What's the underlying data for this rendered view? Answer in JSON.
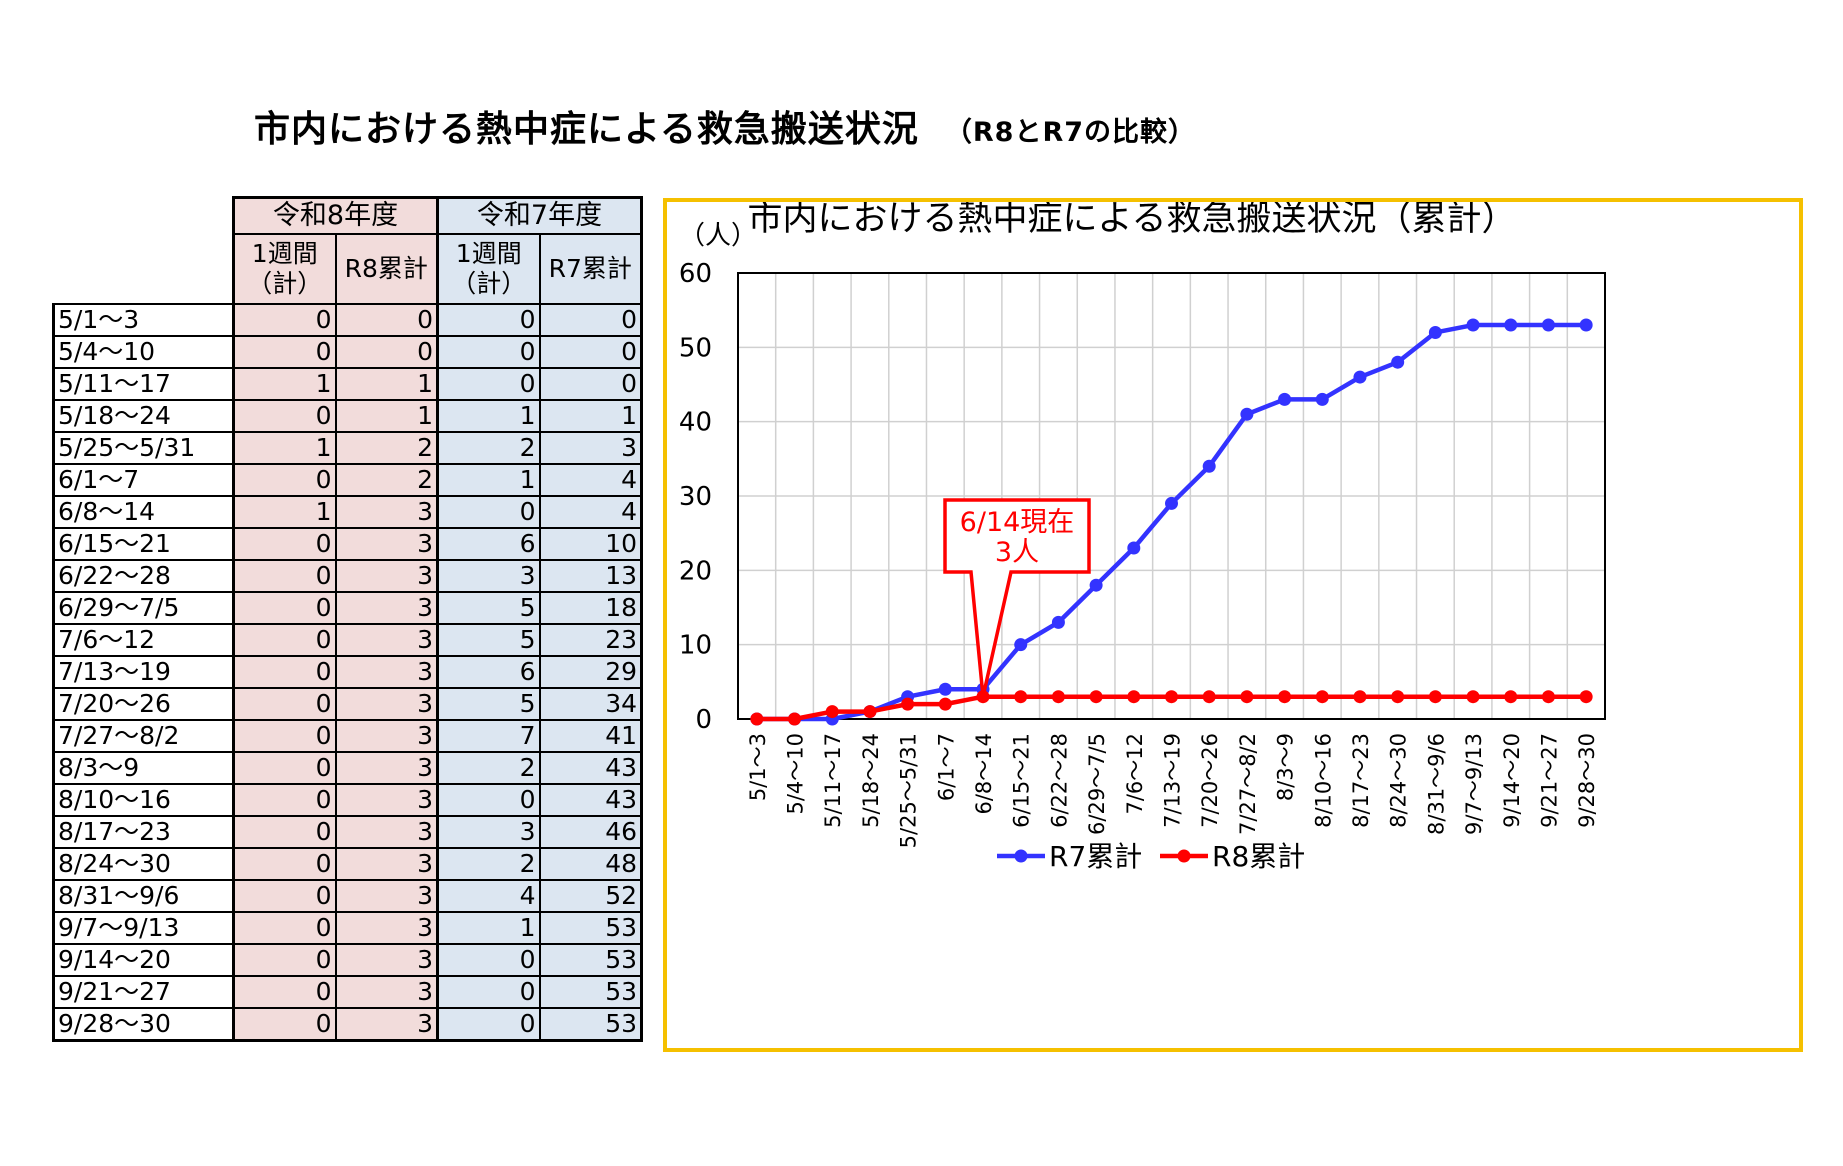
{
  "page": {
    "title": "市内における熱中症による救急搬送状況",
    "subtitle": "（R8とR7の比較）"
  },
  "table": {
    "group_headers": [
      "令和8年度",
      "令和7年度"
    ],
    "sub_headers": [
      "1週間（計）",
      "R8累計",
      "1週間（計）",
      "R7累計"
    ],
    "rows": [
      {
        "period": "5/1～3",
        "r8_week": 0,
        "r8_cum": 0,
        "r7_week": 0,
        "r7_cum": 0
      },
      {
        "period": "5/4～10",
        "r8_week": 0,
        "r8_cum": 0,
        "r7_week": 0,
        "r7_cum": 0
      },
      {
        "period": "5/11～17",
        "r8_week": 1,
        "r8_cum": 1,
        "r7_week": 0,
        "r7_cum": 0
      },
      {
        "period": "5/18～24",
        "r8_week": 0,
        "r8_cum": 1,
        "r7_week": 1,
        "r7_cum": 1
      },
      {
        "period": "5/25～5/31",
        "r8_week": 1,
        "r8_cum": 2,
        "r7_week": 2,
        "r7_cum": 3
      },
      {
        "period": "6/1～7",
        "r8_week": 0,
        "r8_cum": 2,
        "r7_week": 1,
        "r7_cum": 4
      },
      {
        "period": "6/8～14",
        "r8_week": 1,
        "r8_cum": 3,
        "r7_week": 0,
        "r7_cum": 4
      },
      {
        "period": "6/15～21",
        "r8_week": 0,
        "r8_cum": 3,
        "r7_week": 6,
        "r7_cum": 10
      },
      {
        "period": "6/22～28",
        "r8_week": 0,
        "r8_cum": 3,
        "r7_week": 3,
        "r7_cum": 13
      },
      {
        "period": "6/29～7/5",
        "r8_week": 0,
        "r8_cum": 3,
        "r7_week": 5,
        "r7_cum": 18
      },
      {
        "period": "7/6～12",
        "r8_week": 0,
        "r8_cum": 3,
        "r7_week": 5,
        "r7_cum": 23
      },
      {
        "period": "7/13～19",
        "r8_week": 0,
        "r8_cum": 3,
        "r7_week": 6,
        "r7_cum": 29
      },
      {
        "period": "7/20～26",
        "r8_week": 0,
        "r8_cum": 3,
        "r7_week": 5,
        "r7_cum": 34
      },
      {
        "period": "7/27～8/2",
        "r8_week": 0,
        "r8_cum": 3,
        "r7_week": 7,
        "r7_cum": 41
      },
      {
        "period": "8/3～9",
        "r8_week": 0,
        "r8_cum": 3,
        "r7_week": 2,
        "r7_cum": 43
      },
      {
        "period": "8/10～16",
        "r8_week": 0,
        "r8_cum": 3,
        "r7_week": 0,
        "r7_cum": 43
      },
      {
        "period": "8/17～23",
        "r8_week": 0,
        "r8_cum": 3,
        "r7_week": 3,
        "r7_cum": 46
      },
      {
        "period": "8/24～30",
        "r8_week": 0,
        "r8_cum": 3,
        "r7_week": 2,
        "r7_cum": 48
      },
      {
        "period": "8/31～9/6",
        "r8_week": 0,
        "r8_cum": 3,
        "r7_week": 4,
        "r7_cum": 52
      },
      {
        "period": "9/7～9/13",
        "r8_week": 0,
        "r8_cum": 3,
        "r7_week": 1,
        "r7_cum": 53
      },
      {
        "period": "9/14～20",
        "r8_week": 0,
        "r8_cum": 3,
        "r7_week": 0,
        "r7_cum": 53
      },
      {
        "period": "9/21～27",
        "r8_week": 0,
        "r8_cum": 3,
        "r7_week": 0,
        "r7_cum": 53
      },
      {
        "period": "9/28～30",
        "r8_week": 0,
        "r8_cum": 3,
        "r7_week": 0,
        "r7_cum": 53
      }
    ]
  },
  "chart_data": {
    "type": "line",
    "title": "市内における熱中症による救急搬送状況（累計）",
    "ylabel": "（人）",
    "xlabel": "",
    "ylim": [
      0,
      60
    ],
    "yticks": [
      0,
      10,
      20,
      30,
      40,
      50,
      60
    ],
    "grid": true,
    "legend_position": "bottom",
    "categories": [
      "5/1～3",
      "5/4～10",
      "5/11～17",
      "5/18～24",
      "5/25～5/31",
      "6/1～7",
      "6/8～14",
      "6/15～21",
      "6/22～28",
      "6/29～7/5",
      "7/6～12",
      "7/13～19",
      "7/20～26",
      "7/27～8/2",
      "8/3～9",
      "8/10～16",
      "8/17～23",
      "8/24～30",
      "8/31～9/6",
      "9/7～9/13",
      "9/14～20",
      "9/21～27",
      "9/28～30"
    ],
    "series": [
      {
        "name": "R7累計",
        "color": "#3333ff",
        "values": [
          0,
          0,
          0,
          1,
          3,
          4,
          4,
          10,
          13,
          18,
          23,
          29,
          34,
          41,
          43,
          43,
          46,
          48,
          52,
          53,
          53,
          53,
          53
        ]
      },
      {
        "name": "R8累計",
        "color": "#ff0000",
        "values": [
          0,
          0,
          1,
          1,
          2,
          2,
          3,
          3,
          3,
          3,
          3,
          3,
          3,
          3,
          3,
          3,
          3,
          3,
          3,
          3,
          3,
          3,
          3
        ]
      }
    ],
    "annotation": {
      "lines": [
        "6/14現在",
        "3人"
      ],
      "category_index": 6,
      "value": 3,
      "color": "#ff0000"
    }
  },
  "colors": {
    "r8_fill": "#f2dcdb",
    "r7_fill": "#dce6f1",
    "frame": "#f5c000"
  }
}
